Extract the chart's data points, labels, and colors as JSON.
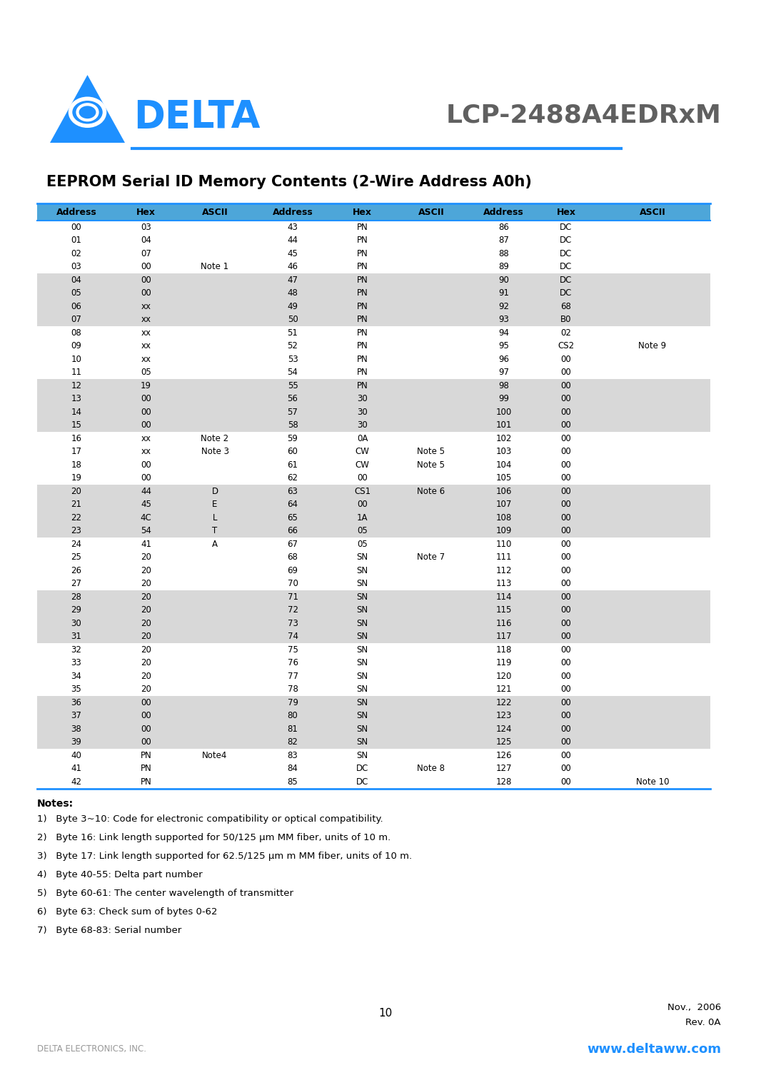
{
  "title": "EEPROM Serial ID Memory Contents (2-Wire Address A0h)",
  "model": "LCP-2488A4EDRxM",
  "header": [
    "Address",
    "Hex",
    "ASCII",
    "Address",
    "Hex",
    "ASCII",
    "Address",
    "Hex",
    "ASCII"
  ],
  "rows": [
    [
      "00",
      "03",
      "",
      "43",
      "PN",
      "",
      "86",
      "DC",
      ""
    ],
    [
      "01",
      "04",
      "",
      "44",
      "PN",
      "",
      "87",
      "DC",
      ""
    ],
    [
      "02",
      "07",
      "",
      "45",
      "PN",
      "",
      "88",
      "DC",
      ""
    ],
    [
      "03",
      "00",
      "Note 1",
      "46",
      "PN",
      "",
      "89",
      "DC",
      ""
    ],
    [
      "04",
      "00",
      "",
      "47",
      "PN",
      "",
      "90",
      "DC",
      ""
    ],
    [
      "05",
      "00",
      "",
      "48",
      "PN",
      "",
      "91",
      "DC",
      ""
    ],
    [
      "06",
      "xx",
      "",
      "49",
      "PN",
      "",
      "92",
      "68",
      ""
    ],
    [
      "07",
      "xx",
      "",
      "50",
      "PN",
      "",
      "93",
      "B0",
      ""
    ],
    [
      "08",
      "xx",
      "",
      "51",
      "PN",
      "",
      "94",
      "02",
      ""
    ],
    [
      "09",
      "xx",
      "",
      "52",
      "PN",
      "",
      "95",
      "CS2",
      "Note 9"
    ],
    [
      "10",
      "xx",
      "",
      "53",
      "PN",
      "",
      "96",
      "00",
      ""
    ],
    [
      "11",
      "05",
      "",
      "54",
      "PN",
      "",
      "97",
      "00",
      ""
    ],
    [
      "12",
      "19",
      "",
      "55",
      "PN",
      "",
      "98",
      "00",
      ""
    ],
    [
      "13",
      "00",
      "",
      "56",
      "30",
      "",
      "99",
      "00",
      ""
    ],
    [
      "14",
      "00",
      "",
      "57",
      "30",
      "",
      "100",
      "00",
      ""
    ],
    [
      "15",
      "00",
      "",
      "58",
      "30",
      "",
      "101",
      "00",
      ""
    ],
    [
      "16",
      "xx",
      "Note 2",
      "59",
      "0A",
      "",
      "102",
      "00",
      ""
    ],
    [
      "17",
      "xx",
      "Note 3",
      "60",
      "CW",
      "Note 5",
      "103",
      "00",
      ""
    ],
    [
      "18",
      "00",
      "",
      "61",
      "CW",
      "Note 5",
      "104",
      "00",
      ""
    ],
    [
      "19",
      "00",
      "",
      "62",
      "00",
      "",
      "105",
      "00",
      ""
    ],
    [
      "20",
      "44",
      "D",
      "63",
      "CS1",
      "Note 6",
      "106",
      "00",
      ""
    ],
    [
      "21",
      "45",
      "E",
      "64",
      "00",
      "",
      "107",
      "00",
      ""
    ],
    [
      "22",
      "4C",
      "L",
      "65",
      "1A",
      "",
      "108",
      "00",
      ""
    ],
    [
      "23",
      "54",
      "T",
      "66",
      "05",
      "",
      "109",
      "00",
      ""
    ],
    [
      "24",
      "41",
      "A",
      "67",
      "05",
      "",
      "110",
      "00",
      ""
    ],
    [
      "25",
      "20",
      "",
      "68",
      "SN",
      "Note 7",
      "111",
      "00",
      ""
    ],
    [
      "26",
      "20",
      "",
      "69",
      "SN",
      "",
      "112",
      "00",
      ""
    ],
    [
      "27",
      "20",
      "",
      "70",
      "SN",
      "",
      "113",
      "00",
      ""
    ],
    [
      "28",
      "20",
      "",
      "71",
      "SN",
      "",
      "114",
      "00",
      ""
    ],
    [
      "29",
      "20",
      "",
      "72",
      "SN",
      "",
      "115",
      "00",
      ""
    ],
    [
      "30",
      "20",
      "",
      "73",
      "SN",
      "",
      "116",
      "00",
      ""
    ],
    [
      "31",
      "20",
      "",
      "74",
      "SN",
      "",
      "117",
      "00",
      ""
    ],
    [
      "32",
      "20",
      "",
      "75",
      "SN",
      "",
      "118",
      "00",
      ""
    ],
    [
      "33",
      "20",
      "",
      "76",
      "SN",
      "",
      "119",
      "00",
      ""
    ],
    [
      "34",
      "20",
      "",
      "77",
      "SN",
      "",
      "120",
      "00",
      ""
    ],
    [
      "35",
      "20",
      "",
      "78",
      "SN",
      "",
      "121",
      "00",
      ""
    ],
    [
      "36",
      "00",
      "",
      "79",
      "SN",
      "",
      "122",
      "00",
      ""
    ],
    [
      "37",
      "00",
      "",
      "80",
      "SN",
      "",
      "123",
      "00",
      ""
    ],
    [
      "38",
      "00",
      "",
      "81",
      "SN",
      "",
      "124",
      "00",
      ""
    ],
    [
      "39",
      "00",
      "",
      "82",
      "SN",
      "",
      "125",
      "00",
      ""
    ],
    [
      "40",
      "PN",
      "Note4",
      "83",
      "SN",
      "",
      "126",
      "00",
      ""
    ],
    [
      "41",
      "PN",
      "",
      "84",
      "DC",
      "Note 8",
      "127",
      "00",
      ""
    ],
    [
      "42",
      "PN",
      "",
      "85",
      "DC",
      "",
      "128",
      "00",
      "Note 10"
    ]
  ],
  "shaded_starts": [
    4,
    12,
    20,
    28,
    36
  ],
  "notes_label": "Notes:",
  "notes": [
    "1)   Byte 3~10: Code for electronic compatibility or optical compatibility.",
    "2)   Byte 16: Link length supported for 50/125 μm MM fiber, units of 10 m.",
    "3)   Byte 17: Link length supported for 62.5/125 μm m MM fiber, units of 10 m.",
    "4)   Byte 40-55: Delta part number",
    "5)   Byte 60-61: The center wavelength of transmitter",
    "6)   Byte 63: Check sum of bytes 0-62",
    "7)   Byte 68-83: Serial number"
  ],
  "page_number": "10",
  "date": "Nov.,  2006",
  "revision": "Rev. 0A",
  "company": "DELTA ELECTRONICS, INC.",
  "website": "www.deltaww.com",
  "header_bg": "#4da6d9",
  "row_bg_white": "#ffffff",
  "row_bg_gray": "#d8d8d8",
  "blue_color": "#1e90ff",
  "model_color": "#606060",
  "gray_text": "#999999"
}
